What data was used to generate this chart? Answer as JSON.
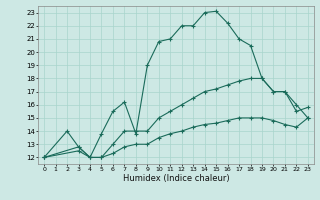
{
  "xlabel": "Humidex (Indice chaleur)",
  "bg_color": "#cde8e4",
  "line_color": "#1a6b5a",
  "grid_color": "#a8d5cc",
  "xlim": [
    -0.5,
    23.5
  ],
  "ylim": [
    11.5,
    23.5
  ],
  "xticks": [
    0,
    1,
    2,
    3,
    4,
    5,
    6,
    7,
    8,
    9,
    10,
    11,
    12,
    13,
    14,
    15,
    16,
    17,
    18,
    19,
    20,
    21,
    22,
    23
  ],
  "yticks": [
    12,
    13,
    14,
    15,
    16,
    17,
    18,
    19,
    20,
    21,
    22,
    23
  ],
  "line1_x": [
    0,
    2,
    3,
    4,
    5,
    6,
    7,
    8,
    9,
    10,
    11,
    12,
    13,
    14,
    15,
    16,
    17,
    18,
    19,
    20,
    21,
    22,
    23
  ],
  "line1_y": [
    12,
    14,
    12.8,
    12,
    13.8,
    15.5,
    16.2,
    13.8,
    19.0,
    20.8,
    21.0,
    22.0,
    22.0,
    23.0,
    23.1,
    22.2,
    21.0,
    20.5,
    18.0,
    17.0,
    17.0,
    15.5,
    15.8
  ],
  "line2_x": [
    0,
    3,
    4,
    5,
    6,
    7,
    8,
    9,
    10,
    11,
    12,
    13,
    14,
    15,
    16,
    17,
    18,
    19,
    20,
    21,
    22,
    23
  ],
  "line2_y": [
    12,
    12.8,
    12.0,
    12.0,
    13.0,
    14.0,
    14.0,
    14.0,
    15.0,
    15.5,
    16.0,
    16.5,
    17.0,
    17.2,
    17.5,
    17.8,
    18.0,
    18.0,
    17.0,
    17.0,
    16.0,
    15.0
  ],
  "line3_x": [
    0,
    3,
    4,
    5,
    6,
    7,
    8,
    9,
    10,
    11,
    12,
    13,
    14,
    15,
    16,
    17,
    18,
    19,
    20,
    21,
    22,
    23
  ],
  "line3_y": [
    12,
    12.5,
    12.0,
    12.0,
    12.3,
    12.8,
    13.0,
    13.0,
    13.5,
    13.8,
    14.0,
    14.3,
    14.5,
    14.6,
    14.8,
    15.0,
    15.0,
    15.0,
    14.8,
    14.5,
    14.3,
    15.0
  ]
}
